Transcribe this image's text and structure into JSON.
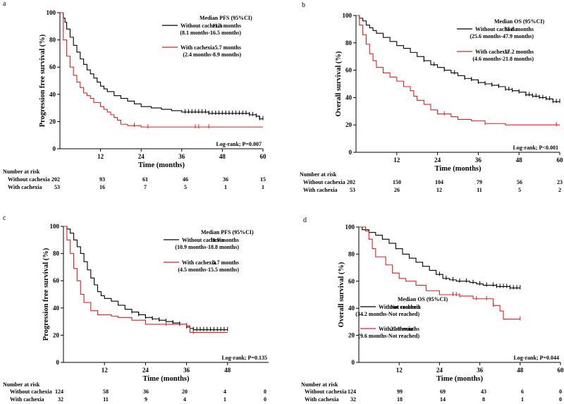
{
  "colors": {
    "without": "#000000",
    "with": "#e0211d",
    "axis": "#000000"
  },
  "chart_data": [
    {
      "type": "line",
      "label": "a",
      "xlabel": "Time (months)",
      "ylabel": "Progression free survival (%)",
      "xlim": [
        0,
        60
      ],
      "ylim": [
        0,
        100
      ],
      "xticks": [
        12,
        24,
        36,
        48,
        60
      ],
      "yticks": [
        0,
        20,
        40,
        60,
        80,
        100
      ],
      "legend_title": "Median PFS (95%CI)",
      "legend_pos": "top-right",
      "logrank": "Log-rank; P=0.007",
      "series": [
        {
          "name": "Without cachexia",
          "color_key": "without",
          "median": "11.1 months",
          "ci": "(8.1 months-16.5 months)",
          "x": [
            0,
            1,
            1.5,
            2,
            3,
            4,
            5,
            6,
            7,
            8,
            9,
            10,
            11,
            12,
            13,
            14,
            16,
            18,
            20,
            22,
            24,
            27,
            30,
            33,
            36,
            40,
            44,
            48,
            52,
            56,
            58,
            59,
            60
          ],
          "y": [
            100,
            96,
            93,
            88,
            82,
            76,
            71,
            66,
            62,
            58,
            55,
            52,
            49,
            46,
            44,
            42,
            39,
            37,
            35,
            33,
            31,
            30,
            29,
            28,
            27,
            27,
            26,
            26,
            26,
            25,
            24,
            22,
            22
          ],
          "censors": [
            37,
            38,
            39,
            40,
            41,
            42,
            43,
            44,
            45,
            46,
            47,
            48,
            49,
            50,
            51,
            52,
            53,
            54,
            55,
            56,
            57,
            58,
            59,
            60
          ]
        },
        {
          "name": "With cachexia",
          "color_key": "with",
          "median": "5.7 months",
          "ci": "(2.4 months-8.9 months)",
          "x": [
            0,
            1,
            2,
            3,
            4,
            5,
            6,
            7,
            8,
            9,
            10,
            12,
            13,
            14,
            15,
            16,
            17,
            18,
            20,
            24,
            60
          ],
          "y": [
            100,
            80,
            68,
            60,
            54,
            49,
            45,
            41,
            39,
            37,
            34,
            31,
            29,
            27,
            25,
            23,
            21,
            18,
            17,
            16,
            16
          ],
          "censors": [
            22,
            26,
            40,
            41,
            44
          ]
        }
      ],
      "risk_title": "Number at risk",
      "risk_rows": [
        {
          "label": "Without cachexia",
          "values": [
            "202",
            "93",
            "61",
            "46",
            "36",
            "15"
          ]
        },
        {
          "label": "With cachexia",
          "values": [
            "53",
            "16",
            "7",
            "5",
            "1",
            "1"
          ]
        }
      ]
    },
    {
      "type": "line",
      "label": "b",
      "xlabel": "Time (months)",
      "ylabel": "Overall survival (%)",
      "xlim": [
        0,
        60
      ],
      "ylim": [
        0,
        100
      ],
      "xticks": [
        12,
        24,
        36,
        48,
        60
      ],
      "yticks": [
        0,
        20,
        40,
        60,
        80,
        100
      ],
      "legend_title": "Median OS (95%CI)",
      "legend_pos": "top-right",
      "logrank": "Log-rank; P<0.001",
      "series": [
        {
          "name": "Without cachexia",
          "color_key": "without",
          "median": "35.8 months",
          "ci": "(25.6 months-47.9 months)",
          "x": [
            0,
            1,
            2,
            3,
            4,
            5,
            6,
            8,
            10,
            12,
            14,
            16,
            18,
            20,
            22,
            24,
            26,
            28,
            30,
            32,
            34,
            36,
            38,
            40,
            42,
            44,
            46,
            48,
            50,
            52,
            54,
            56,
            58,
            60
          ],
          "y": [
            100,
            98,
            96,
            93,
            91,
            89,
            87,
            84,
            81,
            78,
            76,
            73,
            70,
            67,
            64,
            62,
            60,
            58,
            56,
            54,
            53,
            51,
            50,
            49,
            48,
            46,
            45,
            44,
            42,
            41,
            40,
            39,
            37,
            37
          ],
          "censors": [
            20,
            23,
            26,
            29,
            32,
            34,
            36,
            38,
            40,
            42,
            44,
            45,
            46,
            48,
            50,
            51,
            52,
            53,
            54,
            55,
            56,
            57,
            58,
            59,
            60
          ]
        },
        {
          "name": "With cachexia",
          "color_key": "with",
          "median": "17.2 months",
          "ci": "(4.6 months-21.8 months)",
          "x": [
            0,
            1,
            2,
            3,
            4,
            5,
            6,
            8,
            10,
            12,
            14,
            16,
            17,
            18,
            20,
            22,
            24,
            28,
            30,
            34,
            38,
            44,
            60
          ],
          "y": [
            100,
            93,
            86,
            79,
            72,
            67,
            62,
            58,
            55,
            52,
            48,
            45,
            41,
            38,
            35,
            31,
            28,
            26,
            24,
            23,
            21,
            20,
            20
          ],
          "censors": [
            26,
            38,
            59
          ]
        }
      ],
      "risk_title": "Number at risk",
      "risk_rows": [
        {
          "label": "Without cachexia",
          "values": [
            "202",
            "150",
            "104",
            "79",
            "56",
            "23"
          ]
        },
        {
          "label": "With cachexia",
          "values": [
            "53",
            "26",
            "12",
            "11",
            "5",
            "2"
          ]
        }
      ]
    },
    {
      "type": "line",
      "label": "c",
      "xlabel": "Time (months)",
      "ylabel": "Progression free survival (%)",
      "xlim": [
        0,
        60
      ],
      "ylim": [
        0,
        100
      ],
      "xticks": [
        12,
        24,
        36,
        48
      ],
      "yticks": [
        0,
        20,
        40,
        60,
        80,
        100
      ],
      "legend_title": "Median PFS (95%CI)",
      "legend_pos": "top-right",
      "logrank": "Log-rank; P=0.135",
      "series": [
        {
          "name": "Without cachexia",
          "color_key": "without",
          "median": "11.9 months",
          "ci": "(10.9 months-18.8 months)",
          "x": [
            0,
            1,
            2,
            3,
            4,
            5,
            6,
            7,
            8,
            9,
            10,
            11,
            12,
            14,
            16,
            18,
            20,
            22,
            24,
            26,
            28,
            30,
            32,
            34,
            36,
            37,
            38,
            48
          ],
          "y": [
            100,
            98,
            95,
            90,
            85,
            80,
            74,
            68,
            62,
            57,
            52,
            49,
            47,
            45,
            42,
            39,
            37,
            35,
            33,
            32,
            31,
            30,
            29,
            28,
            26,
            25,
            24,
            24
          ],
          "censors": [
            20,
            22,
            24,
            26,
            28,
            30,
            32,
            34,
            36,
            38,
            39,
            40,
            41,
            42,
            43,
            44,
            45,
            46,
            47,
            48
          ]
        },
        {
          "name": "With cachexia",
          "color_key": "with",
          "median": "5.7 months",
          "ci": "(4.5 months-15.5 months)",
          "x": [
            0,
            1,
            2,
            3,
            4,
            5,
            6,
            8,
            10,
            14,
            16,
            20,
            24,
            30,
            36,
            37,
            48
          ],
          "y": [
            100,
            90,
            80,
            69,
            60,
            50,
            44,
            38,
            35,
            34,
            33,
            31,
            28,
            28,
            27,
            22,
            22
          ],
          "censors": [
            30,
            36,
            38
          ]
        }
      ],
      "risk_title": "Number at risk",
      "risk_rows": [
        {
          "label": "Without cachexia",
          "values": [
            "124",
            "58",
            "36",
            "20",
            "4",
            "0"
          ]
        },
        {
          "label": "With cachexia",
          "values": [
            "32",
            "11",
            "9",
            "4",
            "1",
            "0"
          ]
        }
      ]
    },
    {
      "type": "line",
      "label": "d",
      "xlabel": "Time (months)",
      "ylabel": "Overall survival (%)",
      "xlim": [
        0,
        60
      ],
      "ylim": [
        0,
        100
      ],
      "xticks": [
        12,
        24,
        36,
        48,
        60
      ],
      "yticks": [
        0,
        20,
        40,
        60,
        80,
        100
      ],
      "legend_title": "Median OS (95%CI)",
      "legend_pos": "bottom-left",
      "logrank": "Log-rank; P=0.044",
      "series": [
        {
          "name": "Without cachexia",
          "color_key": "without",
          "median": "Not reached",
          "ci": "(34.2 months-Not reached)",
          "x": [
            0,
            1,
            3,
            5,
            7,
            9,
            11,
            13,
            15,
            17,
            19,
            21,
            23,
            25,
            27,
            29,
            31,
            33,
            35,
            37,
            39,
            41,
            43,
            45,
            47,
            48
          ],
          "y": [
            100,
            98,
            96,
            94,
            91,
            88,
            84,
            80,
            77,
            74,
            71,
            68,
            65,
            62,
            61,
            60,
            60,
            59,
            58,
            57,
            57,
            56,
            56,
            55,
            55,
            55
          ],
          "censors": [
            24,
            26,
            28,
            30,
            32,
            34,
            36,
            38,
            40,
            41,
            42,
            43,
            44,
            45,
            46,
            47,
            48
          ]
        },
        {
          "name": "With cachexia",
          "color_key": "with",
          "median": "27.0 months",
          "ci": "(9.6 months-Not reached)",
          "x": [
            0,
            2,
            3,
            4,
            5,
            8,
            10,
            12,
            14,
            17,
            20,
            24,
            27,
            30,
            34,
            40,
            42,
            43,
            48
          ],
          "y": [
            100,
            97,
            91,
            84,
            78,
            72,
            66,
            62,
            60,
            57,
            53,
            50,
            50,
            49,
            47,
            42,
            38,
            32,
            32
          ],
          "censors": [
            28,
            29,
            30,
            35,
            38,
            40,
            48
          ]
        }
      ],
      "risk_title": "Number at risk",
      "risk_rows": [
        {
          "label": "Without cachexia",
          "values": [
            "124",
            "99",
            "69",
            "43",
            "6",
            "0"
          ]
        },
        {
          "label": "With cachexia",
          "values": [
            "32",
            "18",
            "14",
            "8",
            "1",
            "0"
          ]
        }
      ]
    }
  ]
}
